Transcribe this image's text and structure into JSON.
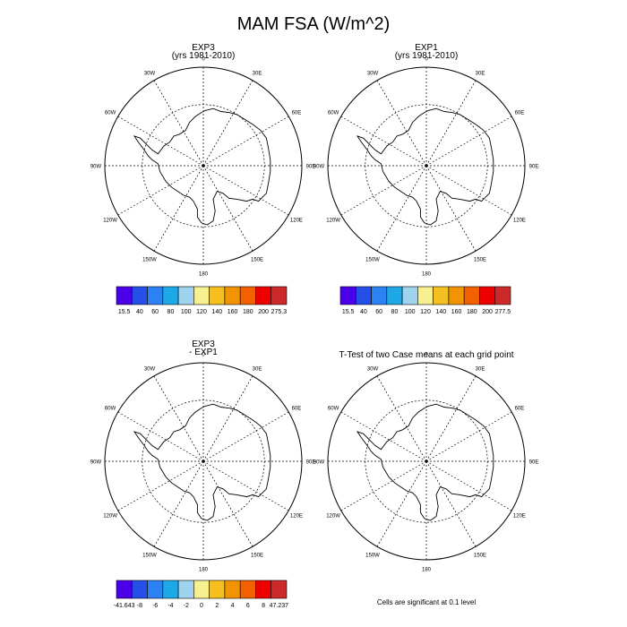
{
  "figure": {
    "title": "MAM FSA (W/m^2)"
  },
  "panels": [
    {
      "id": "p1",
      "title_line1": "EXP3",
      "title_line2": "(yrs 1981-2010)"
    },
    {
      "id": "p2",
      "title_line1": "EXP1",
      "title_line2": "(yrs 1981-2010)"
    },
    {
      "id": "p3",
      "title_line1": "EXP3",
      "title_line2": "- EXP1"
    },
    {
      "id": "p4",
      "title_line1": "T-Test of two Case means at each grid point",
      "title_line2": ""
    }
  ],
  "longitude_labels": [
    "0",
    "30E",
    "60E",
    "90E",
    "120E",
    "150E",
    "180",
    "150W",
    "120W",
    "90W",
    "60W",
    "30W"
  ],
  "colorbars": [
    {
      "id": "cb1",
      "labels": [
        "15.5",
        "40",
        "60",
        "80",
        "100",
        "120",
        "140",
        "160",
        "180",
        "200",
        "275.3"
      ],
      "colors": [
        "#4a00e8",
        "#2450e8",
        "#2c82f2",
        "#1ea8e8",
        "#9fd2ec",
        "#f6f090",
        "#f6c020",
        "#f29400",
        "#f26000",
        "#ee0000",
        "#cc2a2a"
      ]
    },
    {
      "id": "cb2",
      "labels": [
        "15.5",
        "40",
        "60",
        "80",
        "100",
        "120",
        "140",
        "160",
        "180",
        "200",
        "277.5"
      ],
      "colors": [
        "#4a00e8",
        "#2450e8",
        "#2c82f2",
        "#1ea8e8",
        "#9fd2ec",
        "#f6f090",
        "#f6c020",
        "#f29400",
        "#f26000",
        "#ee0000",
        "#cc2a2a"
      ]
    },
    {
      "id": "cb3",
      "labels": [
        "-41.643",
        "-8",
        "-6",
        "-4",
        "-2",
        "0",
        "2",
        "4",
        "6",
        "8",
        "47.237"
      ],
      "colors": [
        "#4a00e8",
        "#2450e8",
        "#2c82f2",
        "#1ea8e8",
        "#9fd2ec",
        "#f6f090",
        "#f6c020",
        "#f29400",
        "#f26000",
        "#ee0000",
        "#cc2a2a"
      ]
    }
  ],
  "significance_note": "Cells are significant at 0.1 level"
}
